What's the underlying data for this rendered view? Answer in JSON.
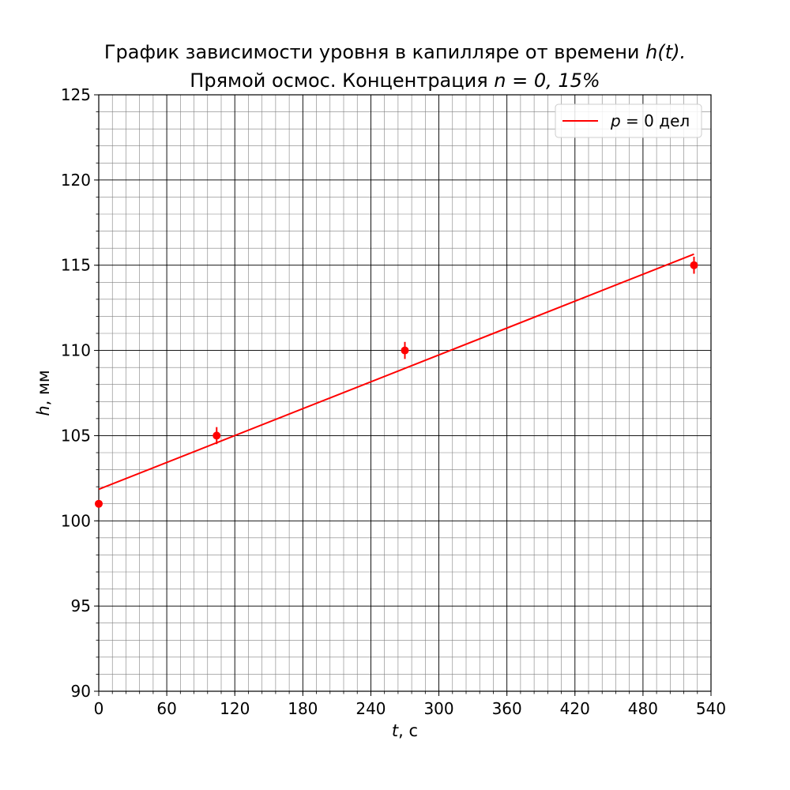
{
  "chart_data": {
    "type": "scatter",
    "title_line1_prefix": "График зависимости уровня в капилляре от времени ",
    "title_line1_math": "h(t).",
    "title_line2_prefix": "Прямой осмос. Концентрация ",
    "title_line2_math": "n = 0, 15%",
    "xlabel_var": "t",
    "xlabel_unit": ", с",
    "ylabel_var": "h",
    "ylabel_unit": ", мм",
    "xlim": [
      0,
      540
    ],
    "ylim": [
      90,
      125
    ],
    "xticks": [
      0,
      60,
      120,
      180,
      240,
      300,
      360,
      420,
      480,
      540
    ],
    "yticks": [
      90,
      95,
      100,
      105,
      110,
      115,
      120,
      125
    ],
    "grid": true,
    "legend_position": "top-right",
    "colors": {
      "series": "#ff0000",
      "major_grid": "#000000",
      "minor_grid": "#808080"
    },
    "series": [
      {
        "name_var": "p",
        "name_rest": " = 0 дел",
        "points": [
          {
            "x": 0,
            "y": 101,
            "yerr": 0
          },
          {
            "x": 104,
            "y": 105,
            "yerr": 0.5
          },
          {
            "x": 270,
            "y": 110,
            "yerr": 0.5
          },
          {
            "x": 525,
            "y": 115,
            "yerr": 0.5
          }
        ],
        "fit_line": {
          "x": [
            0,
            525
          ],
          "y": [
            101.85,
            115.65
          ]
        }
      }
    ]
  }
}
